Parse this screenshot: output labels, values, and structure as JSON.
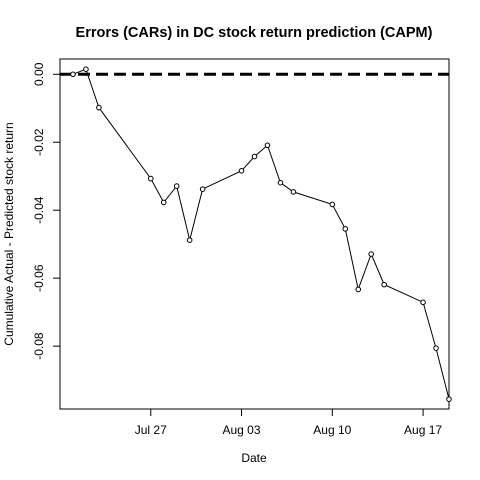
{
  "chart_data": {
    "type": "line",
    "title": "Errors (CARs) in DC stock return prediction (CAPM)",
    "xlabel": "Date",
    "ylabel": "Cumulative Actual - Predicted stock return",
    "xlim": [
      "2015-07-20",
      "2015-08-19"
    ],
    "ylim": [
      -0.0985,
      0.0045
    ],
    "grid": false,
    "legend": "none",
    "x_ticks": [
      {
        "date": "2015-07-27",
        "label": "Jul 27"
      },
      {
        "date": "2015-08-03",
        "label": "Aug 03"
      },
      {
        "date": "2015-08-10",
        "label": "Aug 10"
      },
      {
        "date": "2015-08-17",
        "label": "Aug 17"
      }
    ],
    "y_ticks": [
      {
        "value": 0.0,
        "label": "0.00"
      },
      {
        "value": -0.02,
        "label": "-0.02"
      },
      {
        "value": -0.04,
        "label": "-0.04"
      },
      {
        "value": -0.06,
        "label": "-0.06"
      },
      {
        "value": -0.08,
        "label": "-0.08"
      }
    ],
    "reference_line": {
      "y": 0,
      "style": "dashed",
      "color": "#000000"
    },
    "series": [
      {
        "x": [
          "2015-07-21",
          "2015-07-22",
          "2015-07-23",
          "2015-07-27",
          "2015-07-28",
          "2015-07-29",
          "2015-07-30",
          "2015-07-31",
          "2015-08-03",
          "2015-08-04",
          "2015-08-05",
          "2015-08-06",
          "2015-08-07",
          "2015-08-10",
          "2015-08-11",
          "2015-08-12",
          "2015-08-13",
          "2015-08-14",
          "2015-08-17",
          "2015-08-18",
          "2015-08-19"
        ],
        "y": [
          0.0,
          0.0015,
          -0.0098,
          -0.0307,
          -0.0377,
          -0.0329,
          -0.0488,
          -0.0338,
          -0.0284,
          -0.0242,
          -0.0209,
          -0.0319,
          -0.0346,
          -0.0383,
          -0.0455,
          -0.0633,
          -0.0529,
          -0.0619,
          -0.0671,
          -0.0806,
          -0.0956
        ]
      }
    ]
  }
}
